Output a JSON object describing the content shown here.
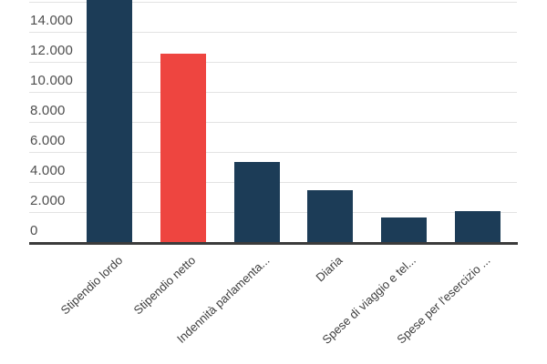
{
  "chart_data": {
    "type": "bar",
    "title": "",
    "xlabel": "",
    "ylabel": "",
    "categories": [
      "Stipendio lordo",
      "Stipendio netto",
      "Indennità parlamenta...",
      "Diaria",
      "Spese di viaggio e tel...",
      "Spese per l'esercizio ..."
    ],
    "values": [
      16500,
      12600,
      5400,
      3500,
      1700,
      2150
    ],
    "bar_colors": [
      "#1c3c57",
      "#ee4540",
      "#1c3c57",
      "#1c3c57",
      "#1c3c57",
      "#1c3c57"
    ],
    "highlight_index": 1,
    "ylim": [
      0,
      16200
    ],
    "y_ticks": [
      {
        "value": 0,
        "label": "0"
      },
      {
        "value": 2000,
        "label": "2.000"
      },
      {
        "value": 4000,
        "label": "4.000"
      },
      {
        "value": 6000,
        "label": "6.000"
      },
      {
        "value": 8000,
        "label": "8.000"
      },
      {
        "value": 10000,
        "label": "10.000"
      },
      {
        "value": 12000,
        "label": "12.000"
      },
      {
        "value": 14000,
        "label": "14.000"
      },
      {
        "value": 16000,
        "label": ""
      }
    ],
    "grid": "horizontal",
    "legend": "none",
    "x_label_rotation_deg": -43,
    "first_bar_clipped_at_top": true
  },
  "colors": {
    "bar_default": "#1c3c57",
    "bar_highlight": "#ee4540",
    "gridline": "#e3e3e3",
    "axis_line": "#3b3b3b",
    "y_tick_text": "#4e4e4e",
    "x_tick_text": "#3e3e3e",
    "background": "#ffffff"
  }
}
